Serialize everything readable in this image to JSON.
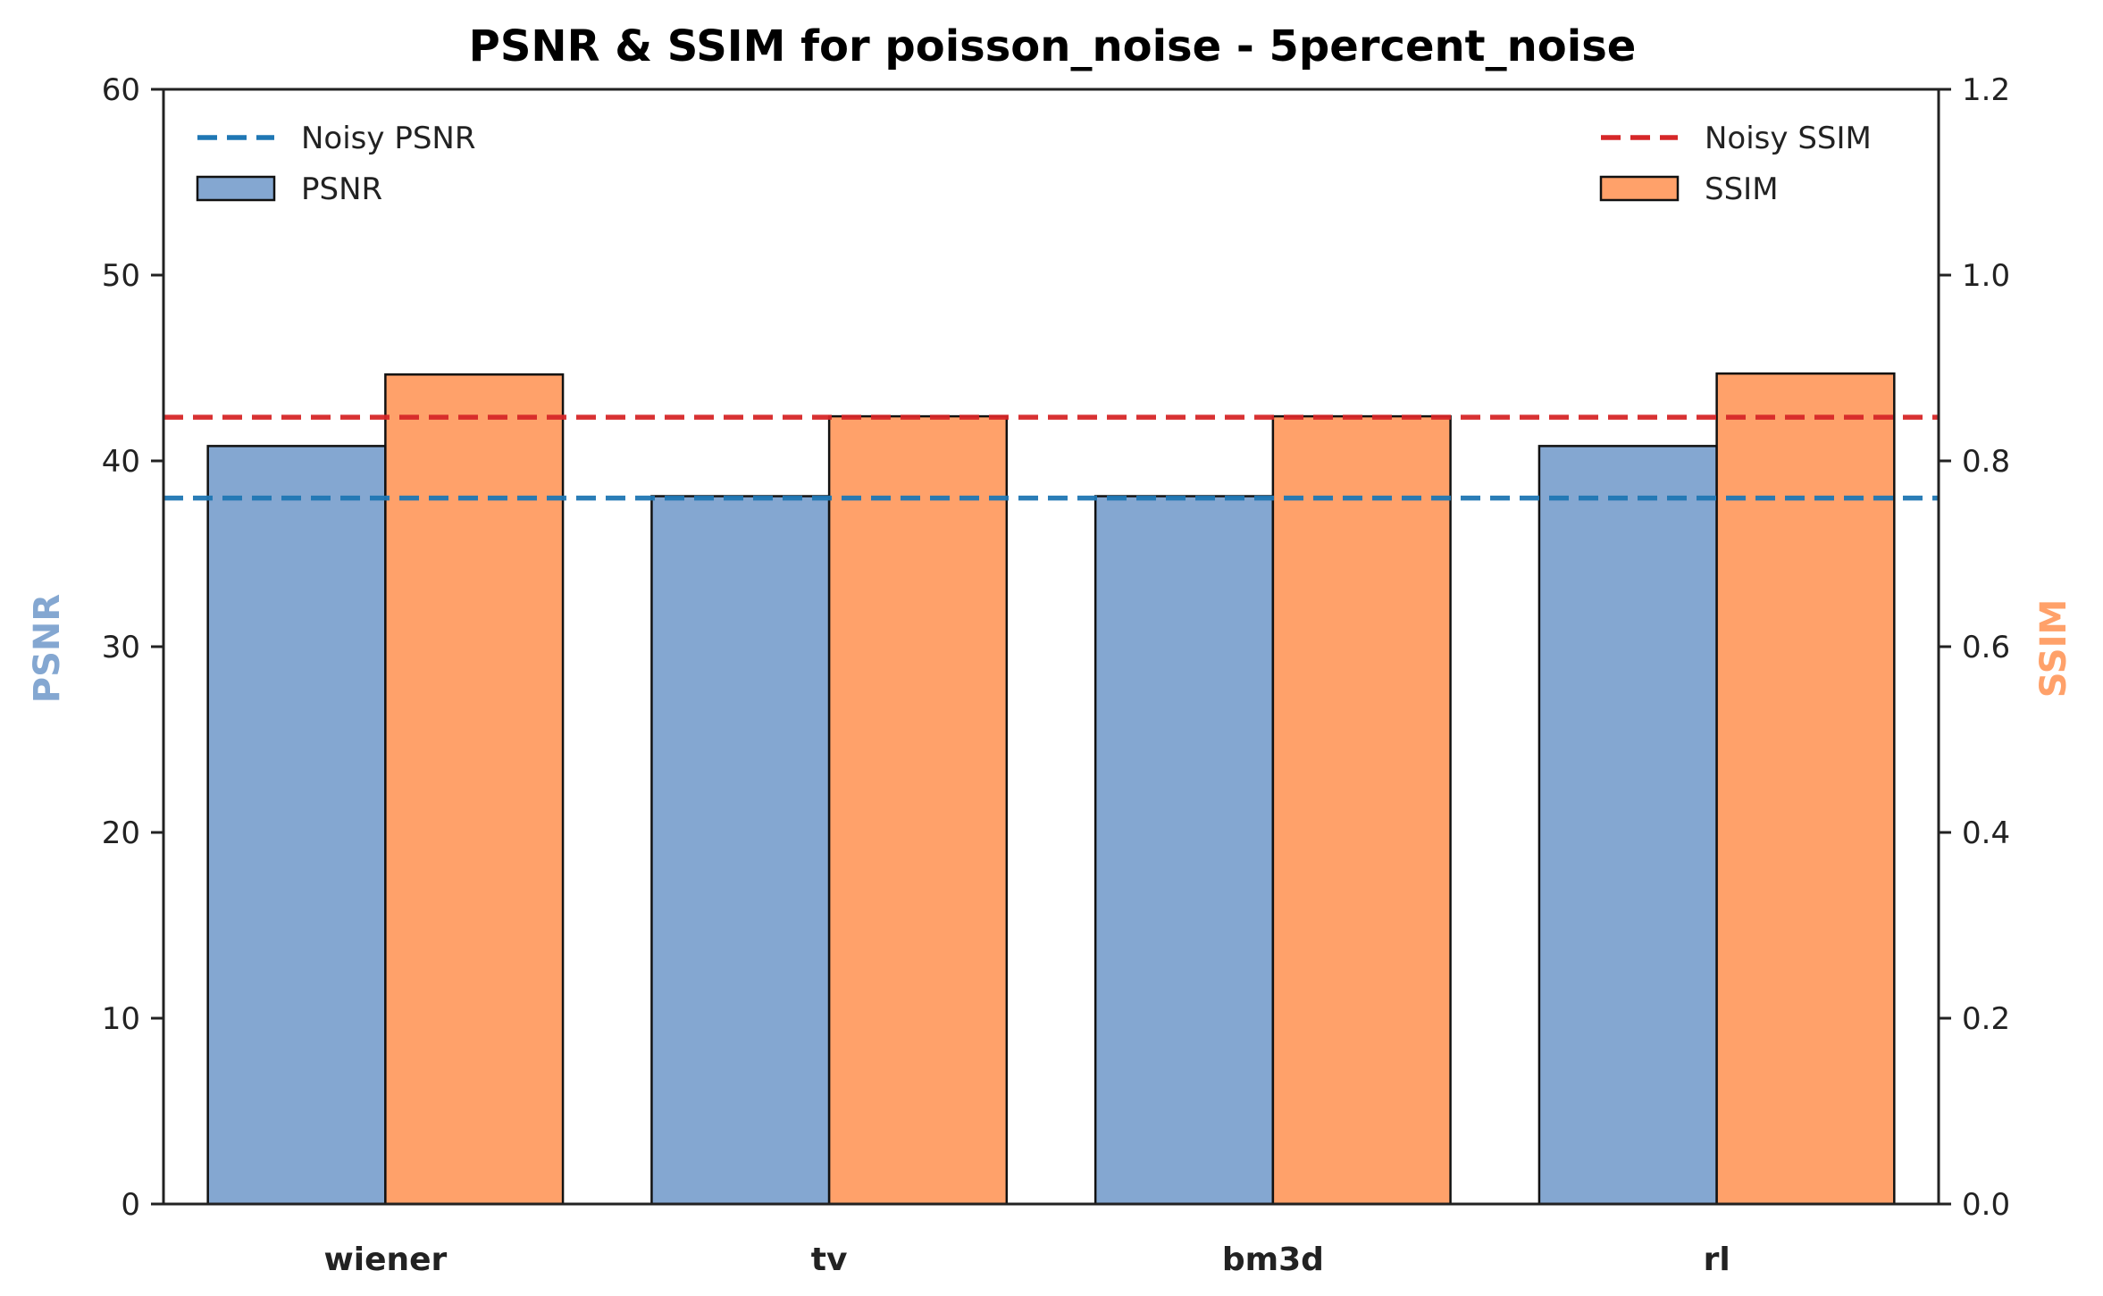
{
  "chart_data": {
    "type": "bar",
    "title": "PSNR & SSIM for poisson_noise - 5percent_noise",
    "categories": [
      "wiener",
      "tv",
      "bm3d",
      "rl"
    ],
    "series": [
      {
        "name": "PSNR",
        "axis": "left",
        "color": "#84a7d1",
        "values": [
          40.8,
          38.1,
          38.1,
          40.8
        ]
      },
      {
        "name": "SSIM",
        "axis": "right",
        "color": "#ffa16a",
        "values": [
          0.893,
          0.848,
          0.848,
          0.894
        ]
      }
    ],
    "reference_lines": [
      {
        "name": "Noisy PSNR",
        "axis": "left",
        "value": 38.0,
        "color": "#1f77b4",
        "style": "dashed"
      },
      {
        "name": "Noisy SSIM",
        "axis": "right",
        "value": 0.847,
        "color": "#d62728",
        "style": "dashed"
      }
    ],
    "ylabel_left": "PSNR",
    "ylabel_right": "SSIM",
    "ylabel_left_color": "#84a7d1",
    "ylabel_right_color": "#ffa16a",
    "ylim_left": [
      0,
      60
    ],
    "ylim_right": [
      0,
      1.2
    ],
    "yticks_left": [
      "0",
      "10",
      "20",
      "30",
      "40",
      "50",
      "60"
    ],
    "yticks_right": [
      "0.0",
      "0.2",
      "0.4",
      "0.6",
      "0.8",
      "1.0",
      "1.2"
    ],
    "legend_left_placement": "top-left",
    "legend_right_placement": "top-right",
    "grid": false
  }
}
